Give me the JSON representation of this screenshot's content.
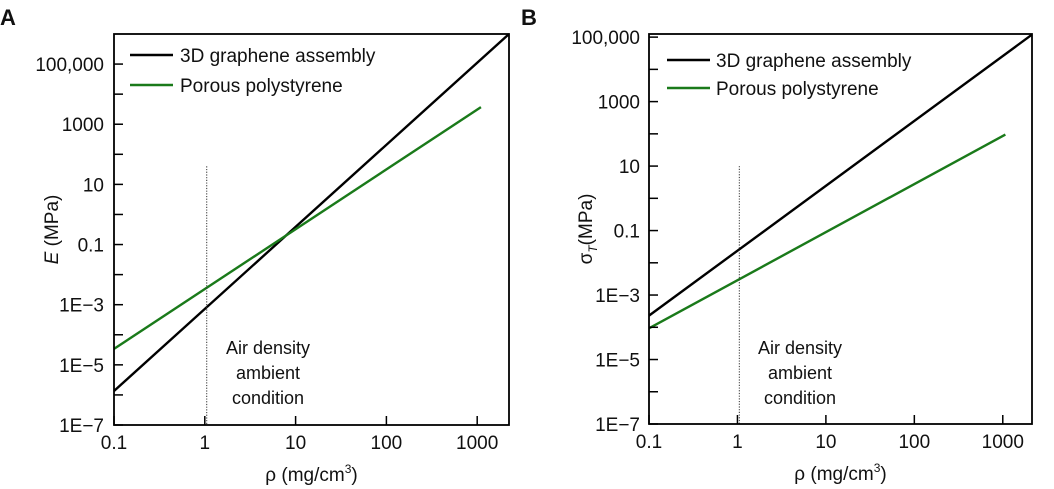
{
  "chart_data": [
    {
      "panel": "A",
      "type": "line",
      "x_scale": "log",
      "y_scale": "log",
      "xlim": [
        0.1,
        2240
      ],
      "ylim": [
        1e-07,
        1000000.0
      ],
      "x_ticks": [
        0.1,
        1,
        10,
        100,
        1000
      ],
      "x_tick_labels": [
        "0.1",
        "1",
        "10",
        "100",
        "1000"
      ],
      "y_ticks": [
        1e-07,
        1e-06,
        1e-05,
        0.0001,
        0.001,
        0.01,
        0.1,
        1,
        10,
        100,
        1000,
        10000.0,
        100000.0
      ],
      "y_tick_labels": [
        "1E−7",
        "",
        "1E−5",
        "",
        "1E−3",
        "",
        "0.1",
        "",
        "10",
        "",
        "1000",
        "",
        "100,000"
      ],
      "xlabel": {
        "main": "ρ (mg/cm",
        "sup": "3",
        "end": ")"
      },
      "ylabel": {
        "symbol": "E",
        "sub": "",
        "unit": " (MPa)"
      },
      "legend_placement": "top-left",
      "grid": false,
      "series": [
        {
          "name": "3D graphene assembly",
          "color": "#000000",
          "x": [
            0.1,
            2240
          ],
          "y": [
            1.35e-06,
            1000000.0
          ]
        },
        {
          "name": "Porous polystyrene",
          "color": "#1a7a1a",
          "x": [
            0.1,
            1100
          ],
          "y": [
            3.4e-05,
            3700
          ]
        }
      ],
      "reference_line": {
        "x": 1.05,
        "y_top": 40,
        "style": "dotted"
      },
      "annotation": [
        "Air density",
        "ambient",
        "condition"
      ]
    },
    {
      "panel": "B",
      "type": "line",
      "x_scale": "log",
      "y_scale": "log",
      "xlim": [
        0.1,
        2140
      ],
      "ylim": [
        1e-07,
        125000.0
      ],
      "x_ticks": [
        0.1,
        1,
        10,
        100,
        1000
      ],
      "x_tick_labels": [
        "0.1",
        "1",
        "10",
        "100",
        "1000"
      ],
      "y_ticks": [
        1e-07,
        1e-06,
        1e-05,
        0.0001,
        0.001,
        0.01,
        0.1,
        1,
        10,
        100,
        1000,
        10000.0,
        100000.0
      ],
      "y_tick_labels": [
        "1E−7",
        "",
        "1E−5",
        "",
        "1E−3",
        "",
        "0.1",
        "",
        "10",
        "",
        "1000",
        "",
        "100,000"
      ],
      "xlabel": {
        "main": "ρ (mg/cm",
        "sup": "3",
        "end": ")"
      },
      "ylabel": {
        "symbol": "σ",
        "sub": "T",
        "unit": "(MPa)"
      },
      "legend_placement": "top-left",
      "grid": false,
      "series": [
        {
          "name": "3D graphene assembly",
          "color": "#000000",
          "x": [
            0.1,
            2140
          ],
          "y": [
            0.00023,
            120000.0
          ]
        },
        {
          "name": "Porous polystyrene",
          "color": "#1a7a1a",
          "x": [
            0.1,
            1070
          ],
          "y": [
            9.3e-05,
            95
          ]
        }
      ],
      "reference_line": {
        "x": 1.05,
        "y_top": 10,
        "style": "dotted"
      },
      "annotation": [
        "Air density",
        "ambient",
        "condition"
      ]
    }
  ]
}
